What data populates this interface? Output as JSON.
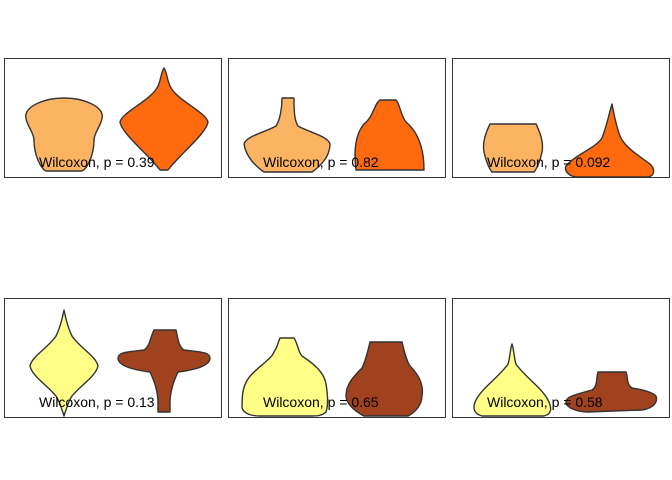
{
  "chart_data": {
    "type": "violin",
    "layout": "2x3 grid of facets",
    "x_axis": "none shown",
    "y_axis": "none shown",
    "legend": "none",
    "panels": [
      {
        "annotation": "Wilcoxon, p = 0.39",
        "groups": [
          {
            "color": "#FDB462"
          },
          {
            "color": "#FF6A0F"
          }
        ]
      },
      {
        "annotation": "Wilcoxon, p = 0.82",
        "groups": [
          {
            "color": "#FDB462"
          },
          {
            "color": "#FF6A0F"
          }
        ]
      },
      {
        "annotation": "Wilcoxon, p = 0.092",
        "groups": [
          {
            "color": "#FDB462"
          },
          {
            "color": "#FF6A0F"
          }
        ]
      },
      {
        "annotation": "Wilcoxon, p = 0.13",
        "groups": [
          {
            "color": "#FFFF88"
          },
          {
            "color": "#A0421E"
          }
        ]
      },
      {
        "annotation": "Wilcoxon, p = 0.65",
        "groups": [
          {
            "color": "#FFFF88"
          },
          {
            "color": "#A0421E"
          }
        ]
      },
      {
        "annotation": "Wilcoxon, p = 0.58",
        "groups": [
          {
            "color": "#FFFF88"
          },
          {
            "color": "#A0421E"
          }
        ]
      }
    ]
  }
}
